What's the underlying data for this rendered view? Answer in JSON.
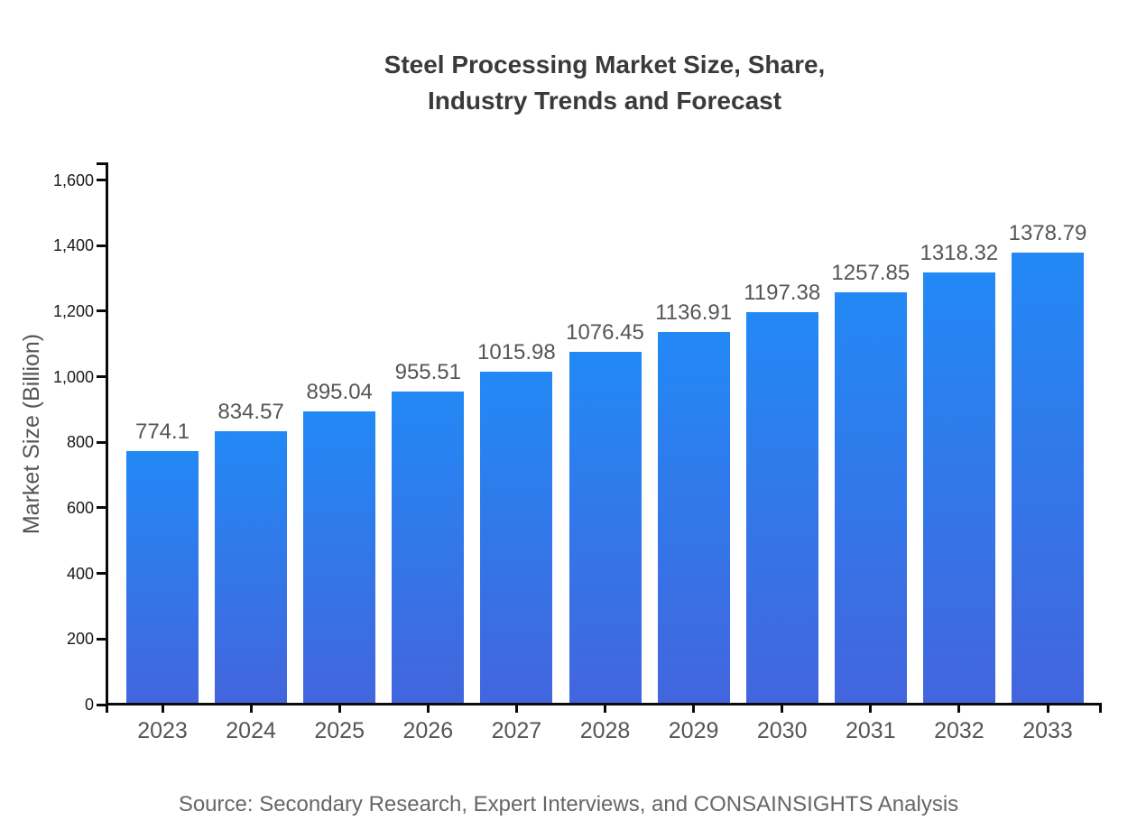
{
  "title": {
    "line1": "Steel Processing Market Size, Share,",
    "line2": "Industry Trends and Forecast"
  },
  "source": "Source: Secondary Research, Expert Interviews, and CONSAINSIGHTS Analysis",
  "colors": {
    "bar_gradient_top": "#2289f5",
    "bar_gradient_bottom": "#4365dd",
    "axis": "#0a0a0a",
    "title_text": "#3a3a3a",
    "tick_label": "#1a1a1a",
    "category_label": "#555555",
    "value_label": "#555555",
    "source_text": "#666666"
  },
  "chart_data": {
    "type": "bar",
    "title": "Steel Processing Market Size, Share, Industry Trends and Forecast",
    "xlabel": "",
    "ylabel": "Market Size (Billion)",
    "categories": [
      "2023",
      "2024",
      "2025",
      "2026",
      "2027",
      "2028",
      "2029",
      "2030",
      "2031",
      "2032",
      "2033"
    ],
    "values": [
      774.1,
      834.57,
      895.04,
      955.51,
      1015.98,
      1076.45,
      1136.91,
      1197.38,
      1257.85,
      1318.32,
      1378.79
    ],
    "value_labels": [
      "774.1",
      "834.57",
      "895.04",
      "955.51",
      "1015.98",
      "1076.45",
      "1136.91",
      "1197.38",
      "1257.85",
      "1318.32",
      "1378.79"
    ],
    "ylim": [
      0,
      1650
    ],
    "yticks": {
      "values": [
        0,
        200,
        400,
        600,
        800,
        1000,
        1200,
        1400,
        1600
      ],
      "labels": [
        "0",
        "200",
        "400",
        "600",
        "800",
        "1,000",
        "1,200",
        "1,400",
        "1,600"
      ]
    },
    "grid": false,
    "legend": false
  }
}
